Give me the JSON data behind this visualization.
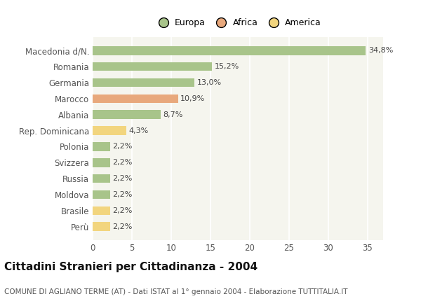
{
  "categories": [
    "Macedonia d/N.",
    "Romania",
    "Germania",
    "Marocco",
    "Albania",
    "Rep. Dominicana",
    "Polonia",
    "Svizzera",
    "Russia",
    "Moldova",
    "Brasile",
    "Perù"
  ],
  "values": [
    34.8,
    15.2,
    13.0,
    10.9,
    8.7,
    4.3,
    2.2,
    2.2,
    2.2,
    2.2,
    2.2,
    2.2
  ],
  "labels": [
    "34,8%",
    "15,2%",
    "13,0%",
    "10,9%",
    "8,7%",
    "4,3%",
    "2,2%",
    "2,2%",
    "2,2%",
    "2,2%",
    "2,2%",
    "2,2%"
  ],
  "colors": [
    "#a8c48a",
    "#a8c48a",
    "#a8c48a",
    "#e8a87c",
    "#a8c48a",
    "#f2d57e",
    "#a8c48a",
    "#a8c48a",
    "#a8c48a",
    "#a8c48a",
    "#f2d57e",
    "#f2d57e"
  ],
  "legend_labels": [
    "Europa",
    "Africa",
    "America"
  ],
  "legend_colors": [
    "#a8c48a",
    "#e8a87c",
    "#f2d57e"
  ],
  "xlim": [
    0,
    37
  ],
  "xticks": [
    0,
    5,
    10,
    15,
    20,
    25,
    30,
    35
  ],
  "title": "Cittadini Stranieri per Cittadinanza - 2004",
  "subtitle": "COMUNE DI AGLIANO TERME (AT) - Dati ISTAT al 1° gennaio 2004 - Elaborazione TUTTITALIA.IT",
  "bg_color": "#ffffff",
  "plot_bg_color": "#f5f5ee",
  "grid_color": "#ffffff",
  "bar_height": 0.55,
  "title_fontsize": 11,
  "subtitle_fontsize": 7.5,
  "label_fontsize": 8,
  "tick_fontsize": 8.5,
  "legend_fontsize": 9
}
